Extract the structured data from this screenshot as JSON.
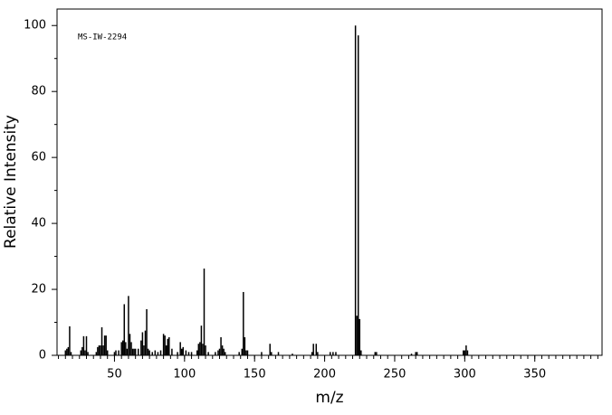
{
  "chart_data": {
    "type": "bar",
    "annotation": "MS-IW-2294",
    "x_label": "m/z",
    "y_label": "Relative Intensity",
    "color": "#000000",
    "xlim": [
      9,
      398
    ],
    "ylim": [
      0,
      105
    ],
    "xticks": [
      50,
      100,
      150,
      200,
      250,
      300,
      350
    ],
    "yticks": [
      0,
      20,
      40,
      60,
      80,
      100
    ],
    "x": [
      15,
      16,
      17,
      18,
      19,
      26,
      27,
      28,
      29,
      30,
      31,
      37,
      38,
      39,
      40,
      41,
      42,
      43,
      44,
      45,
      50,
      51,
      53,
      55,
      56,
      57,
      58,
      59,
      60,
      61,
      62,
      63,
      64,
      65,
      67,
      69,
      70,
      71,
      72,
      73,
      74,
      75,
      77,
      79,
      81,
      83,
      85,
      86,
      87,
      88,
      89,
      91,
      95,
      97,
      98,
      99,
      101,
      103,
      105,
      109,
      110,
      111,
      112,
      113,
      114,
      115,
      117,
      122,
      124,
      125,
      126,
      127,
      128,
      129,
      139,
      141,
      142,
      143,
      144,
      145,
      155,
      161,
      162,
      167,
      177,
      191,
      192,
      194,
      195,
      204,
      206,
      208,
      222,
      223,
      224,
      225,
      226,
      236,
      237,
      262,
      265,
      266,
      299,
      300,
      301,
      302
    ],
    "values": [
      1.5,
      2,
      2.5,
      8.8,
      1,
      1.5,
      2.5,
      5.8,
      1.5,
      5.8,
      1,
      1,
      2.5,
      3,
      3,
      8.5,
      3,
      6,
      6,
      1.5,
      1,
      1.5,
      1.5,
      4,
      4.5,
      15.5,
      4,
      2,
      18,
      6.5,
      4,
      2,
      2,
      2,
      2,
      4.5,
      7,
      3,
      7.5,
      14,
      2,
      1.5,
      1,
      1.5,
      1,
      1.5,
      6.5,
      6,
      3,
      5,
      5.5,
      2,
      1,
      4,
      2,
      2.5,
      1.5,
      1,
      1,
      1.5,
      3.5,
      4,
      9,
      3.5,
      26.3,
      3,
      1,
      1,
      1.5,
      2,
      5.5,
      3,
      2,
      1,
      1,
      2,
      19.2,
      5.5,
      1.5,
      1.5,
      1,
      3.5,
      1,
      1,
      0.5,
      1,
      3.5,
      3.5,
      1,
      1,
      1,
      1,
      100,
      12,
      97,
      11,
      1.5,
      1,
      1,
      0.5,
      1,
      1,
      1.5,
      1.5,
      3,
      1.5
    ]
  }
}
